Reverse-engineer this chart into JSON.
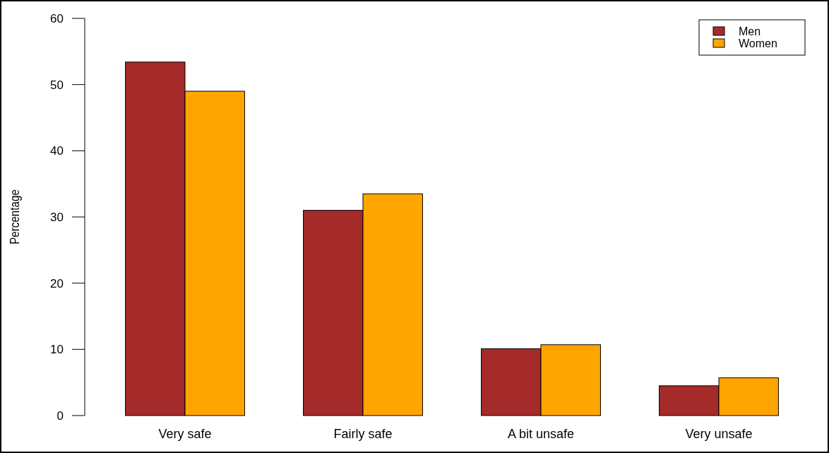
{
  "chart_data": {
    "type": "bar",
    "ylabel": "Percentage",
    "categories": [
      "Very safe",
      "Fairly safe",
      "A bit unsafe",
      "Very unsafe"
    ],
    "series": [
      {
        "name": "Men",
        "color": "#a52a2a",
        "values": [
          53.4,
          31.0,
          10.1,
          4.5
        ]
      },
      {
        "name": "Women",
        "color": "#ffa500",
        "values": [
          49.0,
          33.5,
          10.7,
          5.7
        ]
      }
    ],
    "ylim": [
      0,
      60
    ],
    "yticks": [
      0,
      10,
      20,
      30,
      40,
      50,
      60
    ],
    "grid": false,
    "legend": "top right"
  }
}
